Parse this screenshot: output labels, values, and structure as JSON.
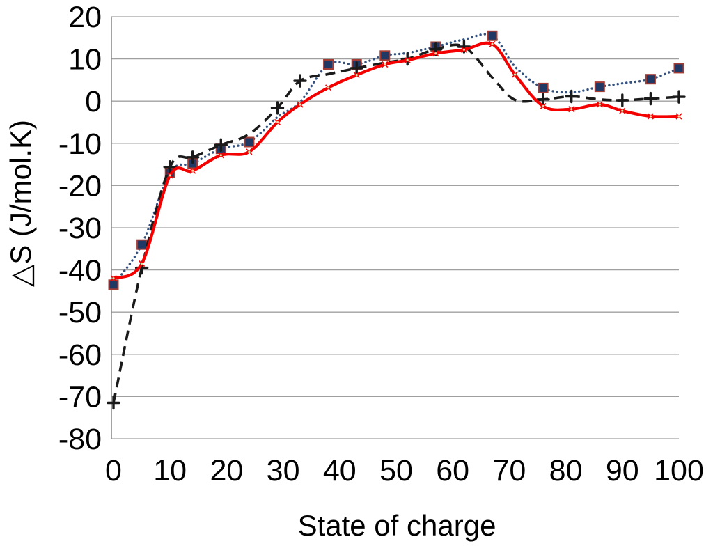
{
  "chart_data": {
    "type": "line",
    "title": "",
    "xlabel": "State of charge",
    "ylabel": "△S (J/mol.K)",
    "xlim": [
      0,
      100
    ],
    "ylim": [
      -80,
      20
    ],
    "xticks": [
      0,
      10,
      20,
      30,
      40,
      50,
      60,
      70,
      80,
      90,
      100
    ],
    "yticks": [
      20,
      10,
      0,
      -10,
      -20,
      -30,
      -40,
      -50,
      -60,
      -70,
      -80
    ],
    "grid": "horizontal-only",
    "legend": "none",
    "background_color": "#FFFFFF",
    "gridline_color": "#A0A0A0",
    "axis_color": "#8C8C8C",
    "text_color": "#000000",
    "x": [
      0,
      5,
      10,
      14,
      19,
      24,
      29,
      33,
      38,
      43,
      48,
      52,
      57,
      62,
      67,
      71,
      76,
      81,
      86,
      90,
      95,
      100
    ],
    "series": [
      {
        "name": "dotted-navy-squares",
        "color": "#33517E",
        "line_style": "dotted",
        "marker": "square",
        "marker_fill": "#1F3864",
        "marker_edge": "#A33C35",
        "values": [
          -43.5,
          -34,
          -17,
          -14.8,
          -11.3,
          -9.7,
          -3.8,
          -0.2,
          8.7,
          8.7,
          10.8,
          11.4,
          12.9,
          14.6,
          15.5,
          8.2,
          3.1,
          2.1,
          3.4,
          4.2,
          5.2,
          7.8
        ],
        "marker_x": [
          0,
          5,
          10,
          14,
          19,
          24,
          38,
          43,
          48,
          57,
          67,
          76,
          86,
          95,
          100
        ]
      },
      {
        "name": "dashed-black-plus",
        "color": "#1A1A1A",
        "line_style": "dashed",
        "marker": "plus",
        "marker_fill": "#1A1A1A",
        "marker_edge": "#1A1A1A",
        "values": [
          -71.5,
          -39.5,
          -15.6,
          -13.3,
          -10.4,
          -7.8,
          -1.6,
          4.8,
          6.4,
          7.8,
          9.1,
          10,
          12.3,
          12.9,
          5.6,
          0.3,
          0.4,
          1.1,
          0.4,
          0.2,
          0.6,
          1.0
        ],
        "marker_x": [
          0,
          5,
          10,
          14,
          19,
          29,
          33,
          43,
          52,
          57,
          62,
          76,
          81,
          90,
          95,
          100
        ]
      },
      {
        "name": "solid-red",
        "color": "#F40000",
        "line_style": "solid",
        "marker": "x-small",
        "marker_fill": "#D9E2A8",
        "marker_edge": "#F40000",
        "values": [
          -42,
          -38.5,
          -17.6,
          -16.5,
          -12.8,
          -12,
          -5,
          -0.8,
          3.2,
          6.2,
          8.7,
          9.7,
          11.3,
          12.2,
          13.5,
          6.3,
          -1.2,
          -1.9,
          -0.8,
          -2.3,
          -3.6,
          -3.6
        ],
        "marker_x": [
          0,
          5,
          10,
          14,
          19,
          24,
          29,
          33,
          38,
          43,
          48,
          52,
          57,
          62,
          67,
          71,
          76,
          81,
          86,
          90,
          95,
          100
        ]
      }
    ]
  }
}
